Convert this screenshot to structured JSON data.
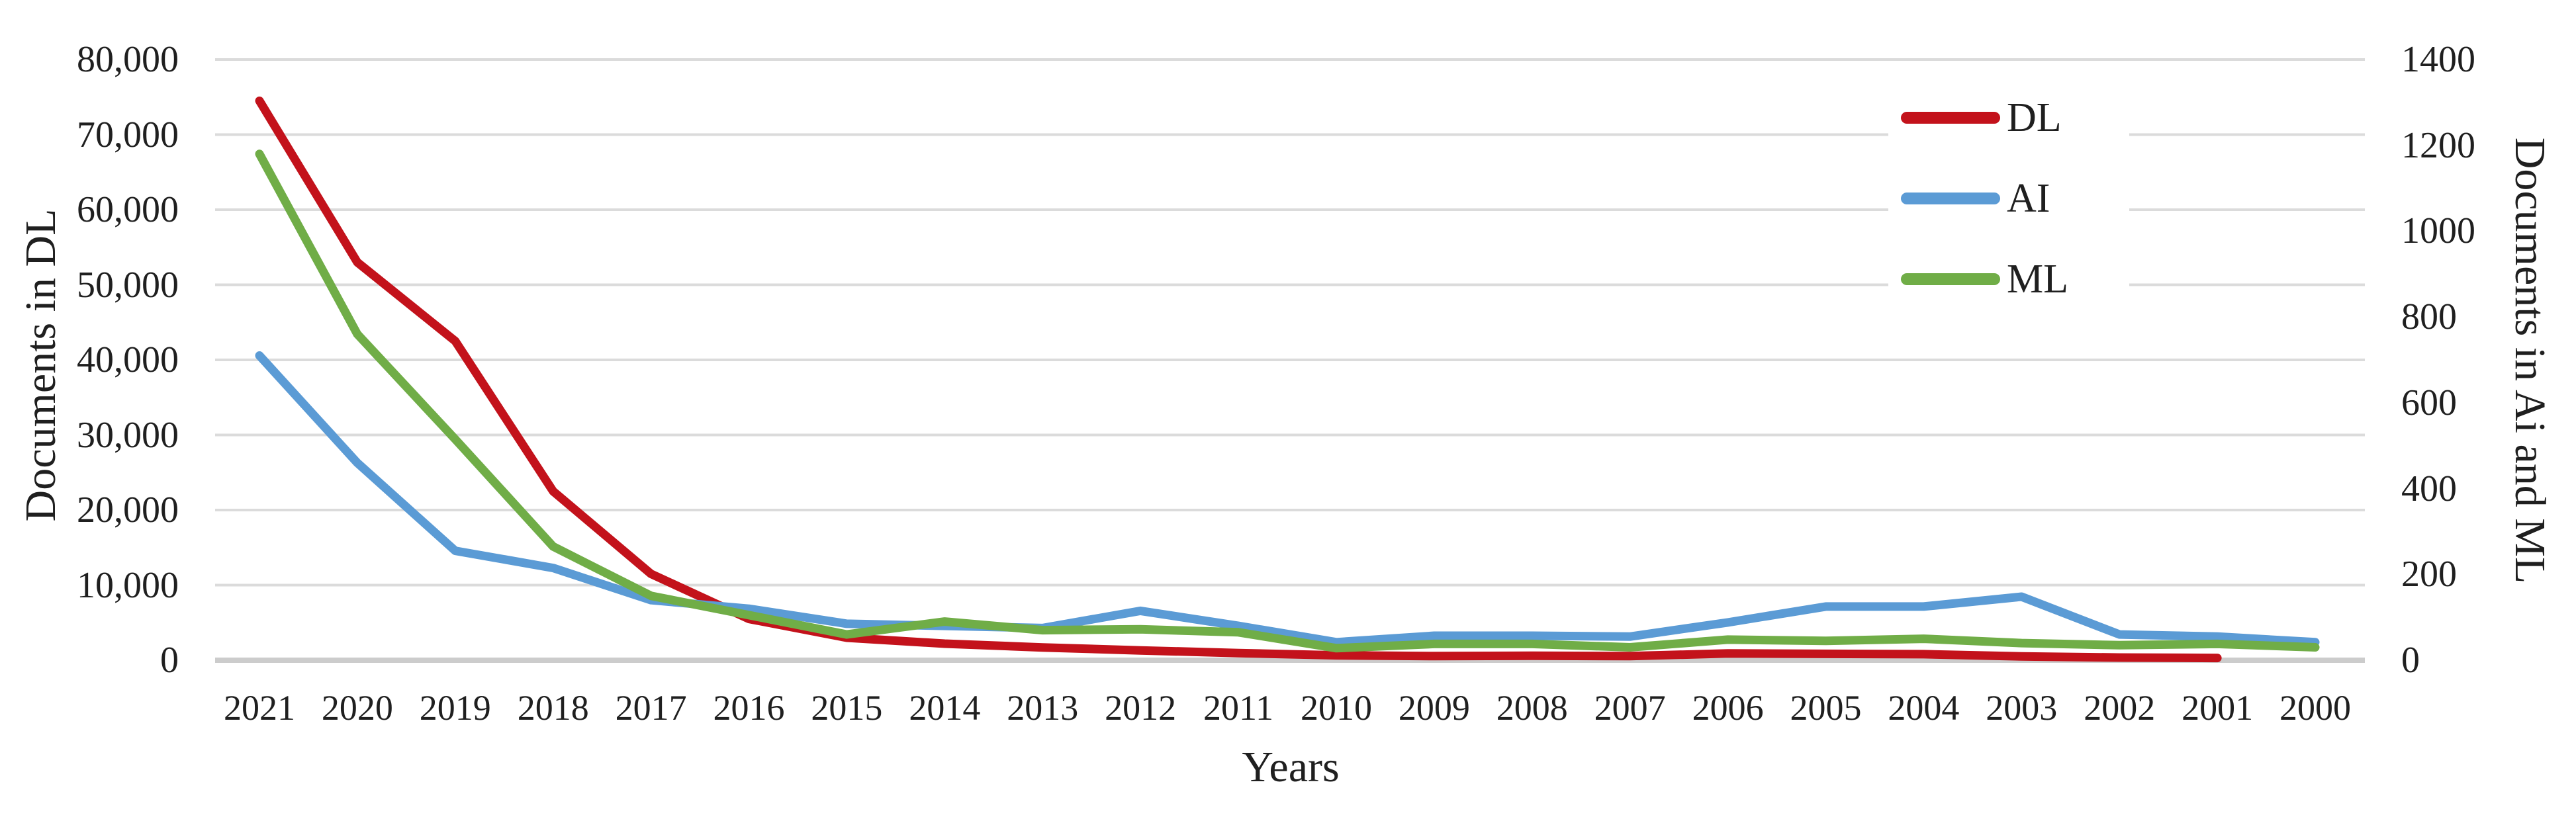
{
  "chart_data": {
    "type": "line",
    "title": "",
    "x": {
      "label": "Years",
      "categories": [
        "2021",
        "2020",
        "2019",
        "2018",
        "2017",
        "2016",
        "2015",
        "2014",
        "2013",
        "2012",
        "2011",
        "2010",
        "2009",
        "2008",
        "2007",
        "2006",
        "2005",
        "2004",
        "2003",
        "2002",
        "2001",
        "2000"
      ]
    },
    "y_left": {
      "label": "Documents in DL",
      "min": 0,
      "max": 80000,
      "tick_step": 10000,
      "ticks_top_to_bottom": [
        "80,000",
        "70,000",
        "60,000",
        "50,000",
        "40,000",
        "30,000",
        "20,000",
        "10,000",
        "0"
      ]
    },
    "y_right": {
      "label": "Documents in Ai and ML",
      "min": 0,
      "max": 1400,
      "tick_step": 200,
      "ticks_top_to_bottom": [
        "1400",
        "1200",
        "1000",
        "800",
        "600",
        "400",
        "200",
        "0"
      ]
    },
    "grid": "horizontal-only",
    "legend_position": "inside-top-right",
    "colors": {
      "gridline": "#DBDBDB",
      "axis_line": "#CCCCCC",
      "text": "#1f1f1f"
    },
    "series": [
      {
        "name": "DL",
        "axis": "left",
        "color": "#C3121B",
        "values": [
          74500,
          53000,
          42500,
          22500,
          11500,
          5500,
          3000,
          2200,
          1700,
          1300,
          950,
          650,
          550,
          600,
          550,
          900,
          850,
          800,
          500,
          350,
          300,
          null
        ]
      },
      {
        "name": "AI",
        "axis": "right",
        "color": "#5B9BD5",
        "values": [
          710,
          460,
          255,
          215,
          140,
          120,
          85,
          80,
          75,
          115,
          80,
          42,
          57,
          57,
          55,
          88,
          125,
          125,
          148,
          60,
          55,
          42
        ]
      },
      {
        "name": "ML",
        "axis": "right",
        "color": "#70AD47",
        "values": [
          1180,
          760,
          515,
          265,
          150,
          105,
          60,
          90,
          70,
          72,
          65,
          28,
          38,
          38,
          30,
          48,
          45,
          50,
          40,
          35,
          38,
          30
        ]
      }
    ]
  }
}
